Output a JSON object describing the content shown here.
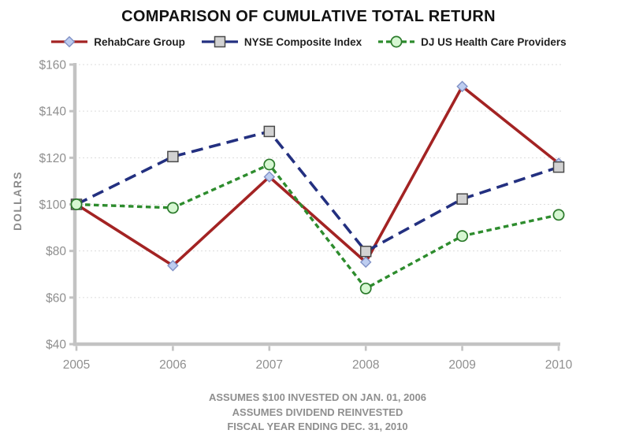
{
  "title": "COMPARISON OF CUMULATIVE TOTAL RETURN",
  "y_axis_label": "DOLLARS",
  "legend": [
    {
      "label": "RehabCare Group",
      "marker": "diamond"
    },
    {
      "label": "NYSE Composite Index",
      "marker": "square"
    },
    {
      "label": "DJ US Health Care Providers",
      "marker": "circle"
    }
  ],
  "footnotes": [
    "ASSUMES $100 INVESTED ON JAN. 01, 2006",
    "ASSUMES DIVIDEND REINVESTED",
    "FISCAL YEAR ENDING DEC. 31, 2010"
  ],
  "colors": {
    "rehabcare_line": "#a32323",
    "nyse_line": "#233080",
    "dj_line": "#2d8c2d",
    "grid": "#dcdcdc",
    "axis": "#c3c3c3",
    "tick_text": "#8f8f8f",
    "title_text": "#121212",
    "footnote_text": "#8f8f8f"
  },
  "chart_data": {
    "type": "line",
    "categories": [
      "2005",
      "2006",
      "2007",
      "2008",
      "2009",
      "2010"
    ],
    "series": [
      {
        "name": "RehabCare Group",
        "values": [
          100,
          73.7,
          111.8,
          75.2,
          150.6,
          117.6
        ],
        "color": "#a32323",
        "dash": "solid",
        "marker": "diamond",
        "marker_fill": "#bdcdf0",
        "marker_stroke": "#8091c6"
      },
      {
        "name": "NYSE Composite Index",
        "values": [
          100,
          120.5,
          131.3,
          79.8,
          102.3,
          116.0
        ],
        "color": "#233080",
        "dash": "long",
        "marker": "square",
        "marker_fill": "#d2d2d2",
        "marker_stroke": "#4a4a4a"
      },
      {
        "name": "DJ US Health Care Providers",
        "values": [
          100,
          98.5,
          117.1,
          63.9,
          86.4,
          95.5
        ],
        "color": "#2d8c2d",
        "dash": "short",
        "marker": "circle",
        "marker_fill": "#d6f7d2",
        "marker_stroke": "#2b7a2b"
      }
    ],
    "title": "COMPARISON OF CUMULATIVE TOTAL RETURN",
    "xlabel": "",
    "ylabel": "DOLLARS",
    "ylim": [
      40,
      160
    ],
    "ytick_step": 20,
    "ytick_prefix": "$",
    "grid": true,
    "grid_style": "dotted",
    "legend_position": "top"
  }
}
